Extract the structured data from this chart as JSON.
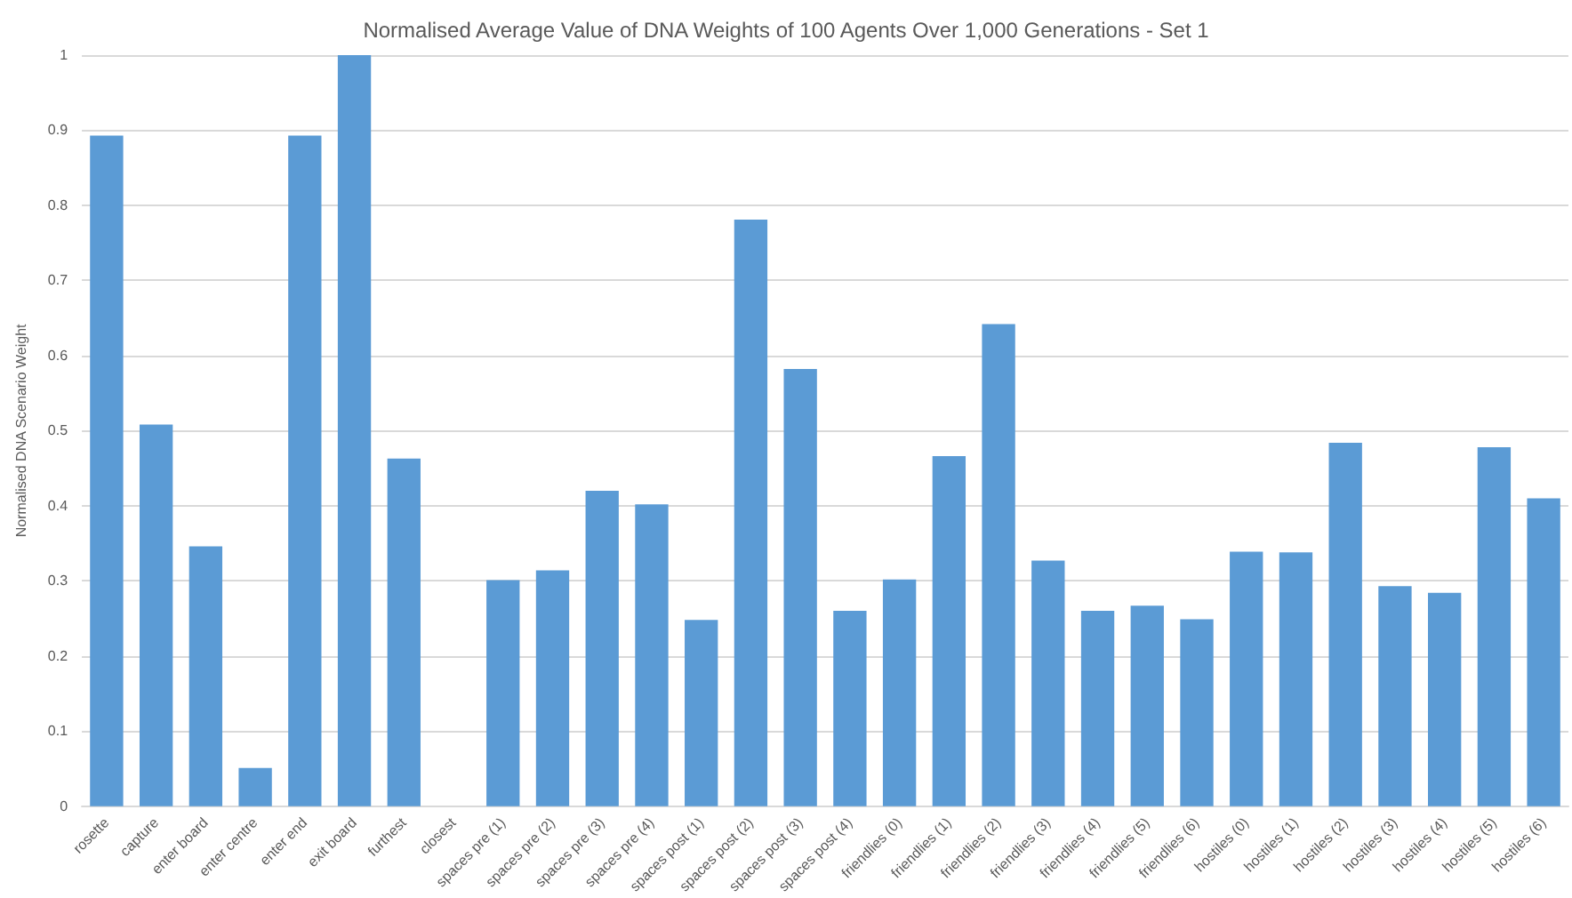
{
  "chart_data": {
    "type": "bar",
    "title": "Normalised Average Value of DNA Weights of 100 Agents Over 1,000 Generations - Set 1",
    "ylabel": "Normalised DNA Scenario Weight",
    "categories": [
      "rosette",
      "capture",
      "enter board",
      "enter centre",
      "enter end",
      "exit board",
      "furthest",
      "closest",
      "spaces pre (1)",
      "spaces pre (2)",
      "spaces pre (3)",
      "spaces pre (4)",
      "spaces post (1)",
      "spaces post (2)",
      "spaces post (3)",
      "spaces post (4)",
      "friendlies (0)",
      "friendlies (1)",
      "friendlies (2)",
      "friendlies (3)",
      "friendlies (4)",
      "friendlies (5)",
      "friendlies (6)",
      "hostiles (0)",
      "hostiles (1)",
      "hostiles (2)",
      "hostiles (3)",
      "hostiles (4)",
      "hostiles (5)",
      "hostiles (6)"
    ],
    "values": [
      0.893,
      0.508,
      0.346,
      0.051,
      0.893,
      1,
      0.463,
      0,
      0.301,
      0.314,
      0.42,
      0.402,
      0.248,
      0.781,
      0.582,
      0.26,
      0.302,
      0.466,
      0.642,
      0.327,
      0.26,
      0.267,
      0.249,
      0.339,
      0.338,
      0.484,
      0.293,
      0.284,
      0.478,
      0.41
    ],
    "color": "#5b9bd5",
    "ylim": [
      0,
      1
    ],
    "yticks": [
      0,
      0.1,
      0.2,
      0.3,
      0.4,
      0.5,
      0.6,
      0.7,
      0.8,
      0.9,
      1
    ],
    "grid": "y"
  }
}
